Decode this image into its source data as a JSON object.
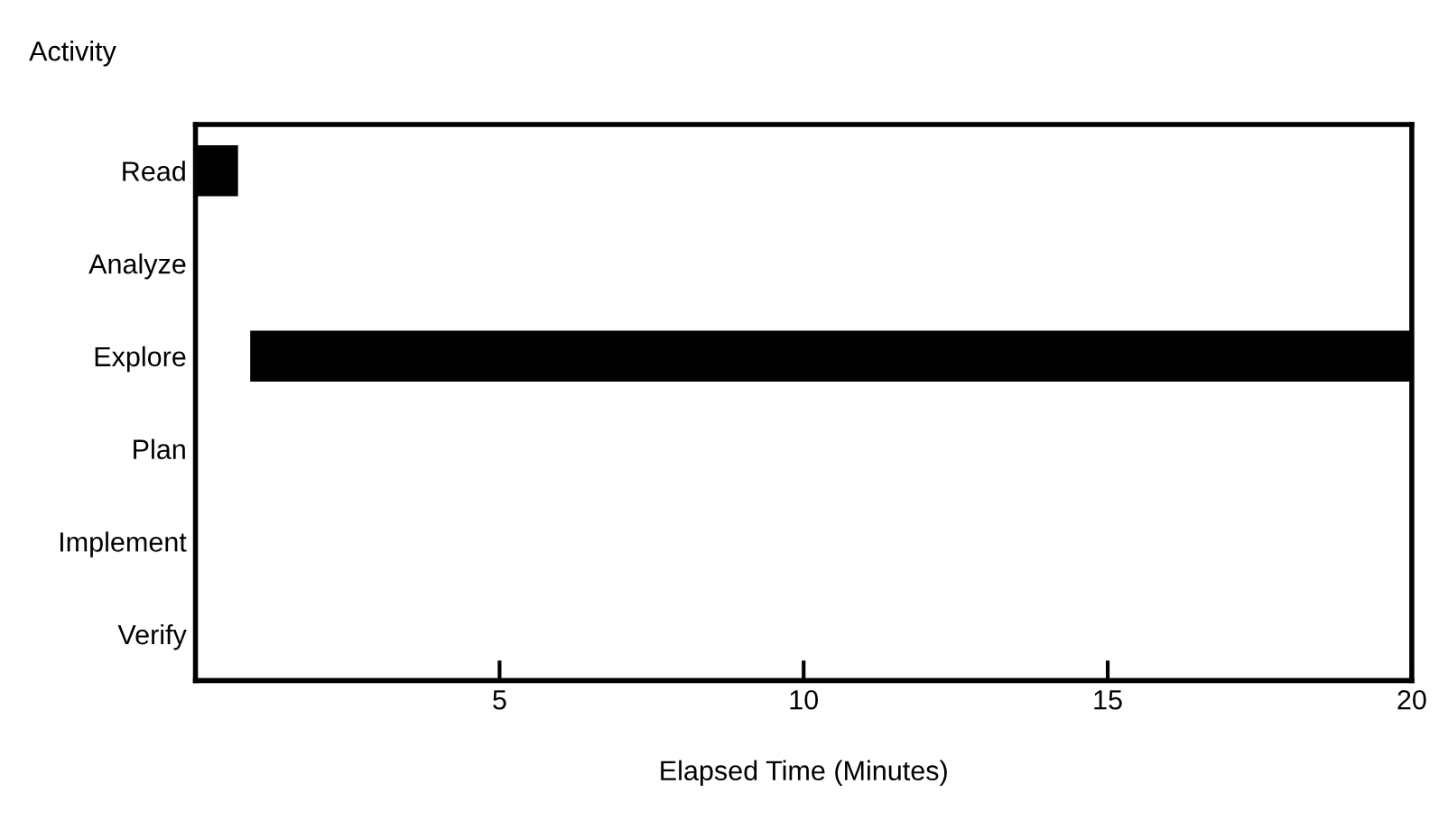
{
  "chart_data": {
    "type": "bar",
    "orientation": "horizontal",
    "ylabel": "Activity",
    "xlabel": "Elapsed Time (Minutes)",
    "categories": [
      "Read",
      "Analyze",
      "Explore",
      "Plan",
      "Implement",
      "Verify"
    ],
    "values": [
      0.7,
      null,
      19.1,
      null,
      null,
      null
    ],
    "base": [
      0,
      null,
      0.9,
      null,
      null,
      null
    ],
    "color": "#000000",
    "xlim": [
      0,
      20
    ],
    "xticks": [
      5,
      10,
      15,
      20
    ],
    "grid": false
  }
}
